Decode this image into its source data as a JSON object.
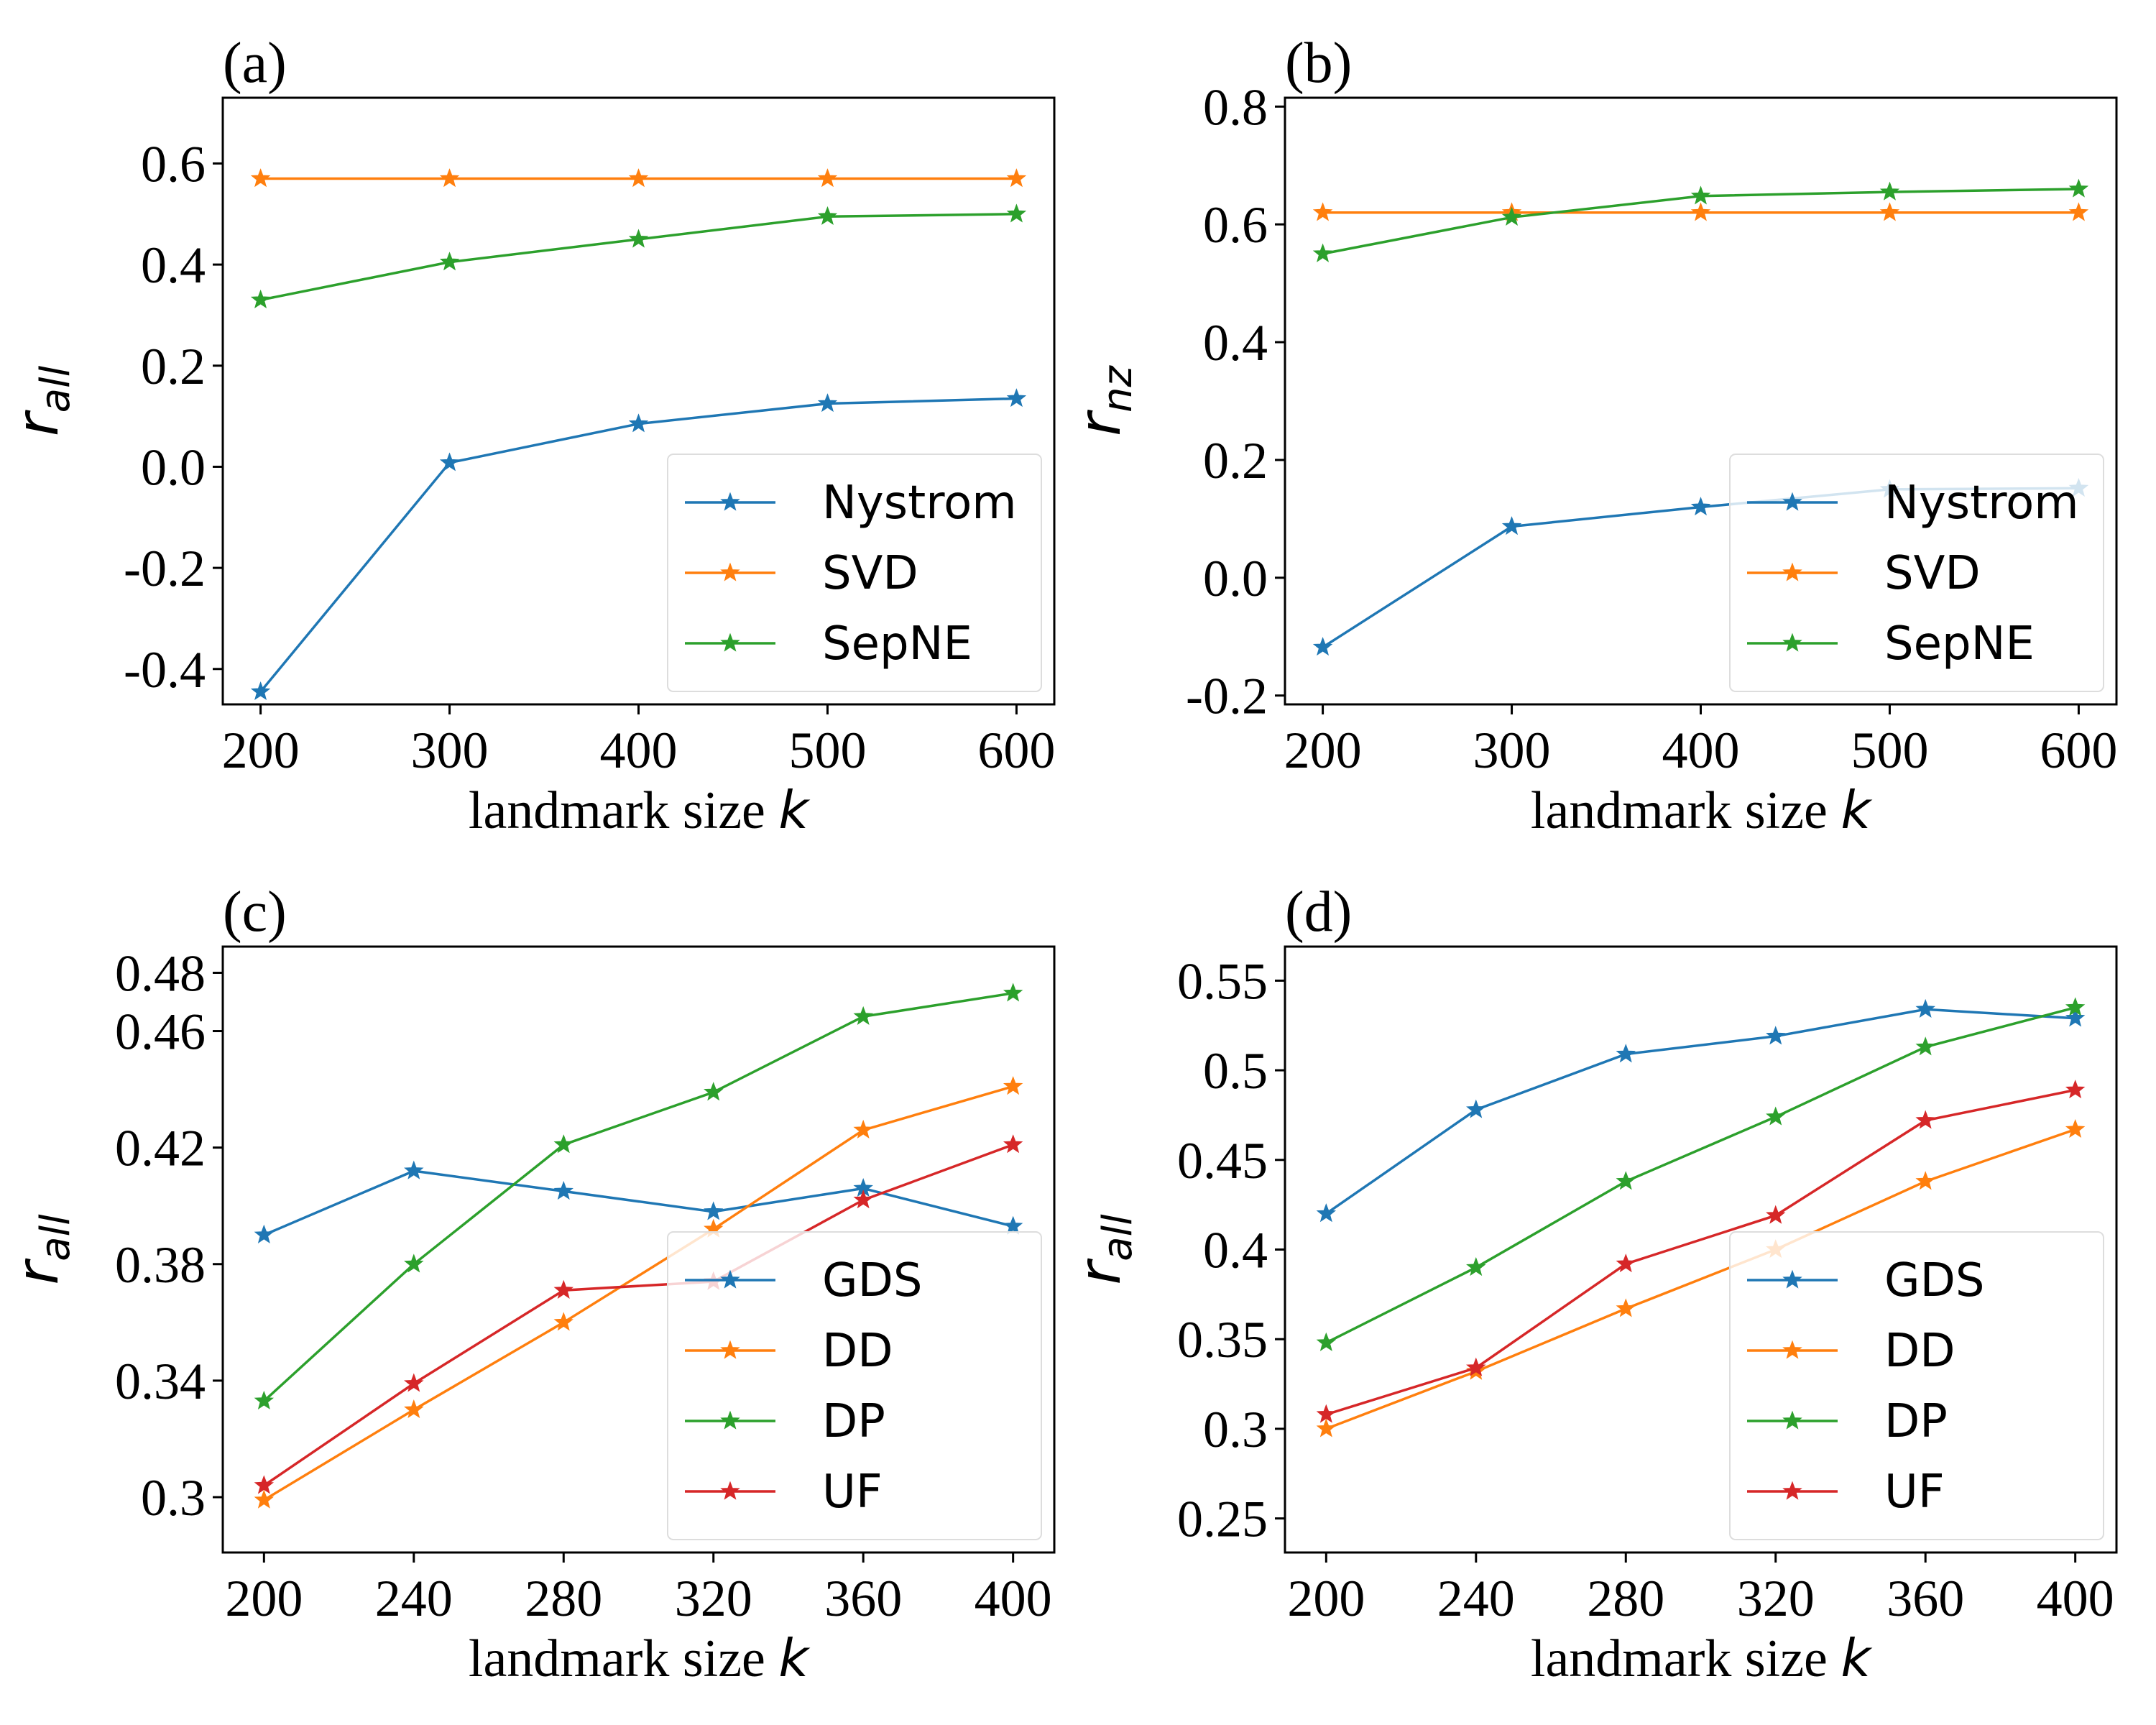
{
  "figure": {
    "background": "#ffffff"
  },
  "chart_data": [
    {
      "panel_label": "(a)",
      "type": "line",
      "xlabel": "landmark size",
      "xlabel_var": "k",
      "ylabel_var": "r",
      "ylabel_sub": "all",
      "x": [
        200,
        300,
        400,
        500,
        600
      ],
      "xticks": [
        "200",
        "300",
        "400",
        "500",
        "600"
      ],
      "xlim": [
        180,
        620
      ],
      "yticks": [
        {
          "value": -0.4,
          "label": "-0.4"
        },
        {
          "value": -0.2,
          "label": "-0.2"
        },
        {
          "value": 0.0,
          "label": "0.0"
        },
        {
          "value": 0.2,
          "label": "0.2"
        },
        {
          "value": 0.4,
          "label": "0.4"
        },
        {
          "value": 0.6,
          "label": "0.6"
        }
      ],
      "ylim": [
        -0.47,
        0.73
      ],
      "legend_position": "lower-right",
      "series": [
        {
          "name": "Nystrom",
          "color": "#1f77b4",
          "values": [
            -0.445,
            0.008,
            0.085,
            0.125,
            0.135
          ]
        },
        {
          "name": "SVD",
          "color": "#ff7f0e",
          "values": [
            0.57,
            0.57,
            0.57,
            0.57,
            0.57
          ]
        },
        {
          "name": "SepNE",
          "color": "#2ca02c",
          "values": [
            0.33,
            0.405,
            0.45,
            0.495,
            0.5
          ]
        }
      ]
    },
    {
      "panel_label": "(b)",
      "type": "line",
      "xlabel": "landmark size",
      "xlabel_var": "k",
      "ylabel_var": "r",
      "ylabel_sub": "nz",
      "x": [
        200,
        300,
        400,
        500,
        600
      ],
      "xticks": [
        "200",
        "300",
        "400",
        "500",
        "600"
      ],
      "xlim": [
        180,
        620
      ],
      "yticks": [
        {
          "value": -0.2,
          "label": "-0.2"
        },
        {
          "value": 0.0,
          "label": "0.0"
        },
        {
          "value": 0.2,
          "label": "0.2"
        },
        {
          "value": 0.4,
          "label": "0.4"
        },
        {
          "value": 0.6,
          "label": "0.6"
        },
        {
          "value": 0.8,
          "label": "0.8"
        }
      ],
      "ylim": [
        -0.215,
        0.815
      ],
      "legend_position": "lower-right",
      "series": [
        {
          "name": "Nystrom",
          "color": "#1f77b4",
          "values": [
            -0.118,
            0.087,
            0.12,
            0.15,
            0.152
          ]
        },
        {
          "name": "SVD",
          "color": "#ff7f0e",
          "values": [
            0.62,
            0.62,
            0.62,
            0.62,
            0.62
          ]
        },
        {
          "name": "SepNE",
          "color": "#2ca02c",
          "values": [
            0.55,
            0.612,
            0.648,
            0.655,
            0.66
          ]
        }
      ]
    },
    {
      "panel_label": "(c)",
      "type": "line",
      "xlabel": "landmark size",
      "xlabel_var": "k",
      "ylabel_var": "r",
      "ylabel_sub": "all",
      "x": [
        200,
        240,
        280,
        320,
        360,
        400
      ],
      "xticks": [
        "200",
        "240",
        "280",
        "320",
        "360",
        "400"
      ],
      "xlim": [
        189,
        411
      ],
      "yticks": [
        {
          "value": 0.3,
          "label": "0.3"
        },
        {
          "value": 0.34,
          "label": "0.34"
        },
        {
          "value": 0.38,
          "label": "0.38"
        },
        {
          "value": 0.42,
          "label": "0.42"
        },
        {
          "value": 0.46,
          "label": "0.46"
        },
        {
          "value": 0.48,
          "label": "0.48"
        }
      ],
      "ylim": [
        0.281,
        0.489
      ],
      "legend_position": "lower-right",
      "series": [
        {
          "name": "GDS",
          "color": "#1f77b4",
          "values": [
            0.39,
            0.412,
            0.405,
            0.398,
            0.406,
            0.393
          ]
        },
        {
          "name": "DD",
          "color": "#ff7f0e",
          "values": [
            0.299,
            0.33,
            0.36,
            0.392,
            0.426,
            0.441
          ]
        },
        {
          "name": "DP",
          "color": "#2ca02c",
          "values": [
            0.333,
            0.38,
            0.421,
            0.439,
            0.465,
            0.473
          ]
        },
        {
          "name": "UF",
          "color": "#d62728",
          "values": [
            0.304,
            0.339,
            0.371,
            0.374,
            0.402,
            0.421
          ]
        }
      ]
    },
    {
      "panel_label": "(d)",
      "type": "line",
      "xlabel": "landmark size",
      "xlabel_var": "k",
      "ylabel_var": "r",
      "ylabel_sub": "all",
      "x": [
        200,
        240,
        280,
        320,
        360,
        400
      ],
      "xticks": [
        "200",
        "240",
        "280",
        "320",
        "360",
        "400"
      ],
      "xlim": [
        189,
        411
      ],
      "yticks": [
        {
          "value": 0.25,
          "label": "0.25"
        },
        {
          "value": 0.3,
          "label": "0.3"
        },
        {
          "value": 0.35,
          "label": "0.35"
        },
        {
          "value": 0.4,
          "label": "0.4"
        },
        {
          "value": 0.45,
          "label": "0.45"
        },
        {
          "value": 0.5,
          "label": "0.5"
        },
        {
          "value": 0.55,
          "label": "0.55"
        }
      ],
      "ylim": [
        0.231,
        0.569
      ],
      "legend_position": "lower-right",
      "series": [
        {
          "name": "GDS",
          "color": "#1f77b4",
          "values": [
            0.42,
            0.478,
            0.509,
            0.519,
            0.534,
            0.529
          ]
        },
        {
          "name": "DD",
          "color": "#ff7f0e",
          "values": [
            0.3,
            0.332,
            0.367,
            0.4,
            0.438,
            0.467
          ]
        },
        {
          "name": "DP",
          "color": "#2ca02c",
          "values": [
            0.348,
            0.39,
            0.438,
            0.474,
            0.513,
            0.535
          ]
        },
        {
          "name": "UF",
          "color": "#d62728",
          "values": [
            0.308,
            0.334,
            0.392,
            0.419,
            0.472,
            0.489
          ]
        }
      ]
    }
  ]
}
